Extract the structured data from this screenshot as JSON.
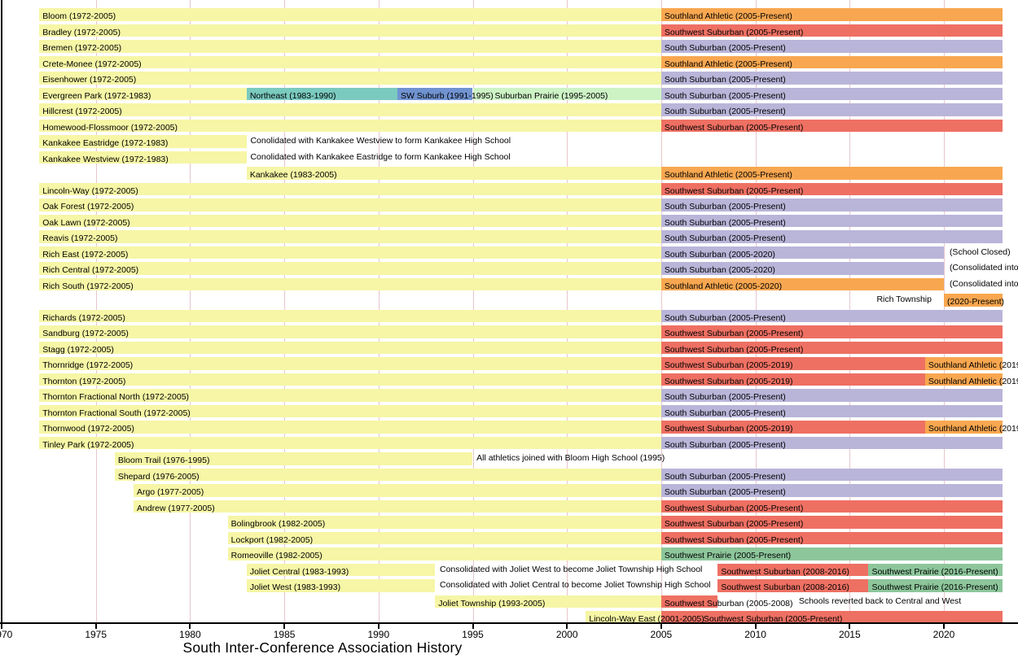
{
  "title": "South Inter-Conference Association History",
  "chart_data": {
    "type": "timeline",
    "title": "South Inter-Conference Association History",
    "xlabel": "",
    "ylabel": "",
    "grid": true,
    "legend_position": "none",
    "x_axis": {
      "min": 1970,
      "max": 2023.1,
      "ticks": [
        1970,
        1975,
        1980,
        1985,
        1990,
        1995,
        2000,
        2005,
        2010,
        2015,
        2020
      ],
      "tick_labels": [
        "1970",
        "1975",
        "1980",
        "1985",
        "1990",
        "1995",
        "2000",
        "2005",
        "2010",
        "2015",
        "2020"
      ]
    },
    "present_year_value": 2023.1,
    "palette": {
      "member": "#f6f6a6",
      "southland_athletic": "#f8a750",
      "southwest_suburban": "#ee7063",
      "south_suburban": "#b9b5d9",
      "northeast": "#7acabf",
      "sw_suburb": "#7092d0",
      "suburban_prairie": "#cdf3c5",
      "southwest_prairie": "#8dc69b",
      "gridline": "#e8c6ca",
      "axis": "#000000"
    },
    "rows": [
      {
        "school": "Bloom",
        "segments": [
          {
            "from": 1972,
            "to": 2005,
            "color": "member",
            "label": "Bloom (1972-2005)"
          },
          {
            "from": 2005,
            "to": "present",
            "color": "southland_athletic",
            "label": "Southland Athletic (2005-Present)"
          }
        ],
        "notes": []
      },
      {
        "school": "Bradley",
        "segments": [
          {
            "from": 1972,
            "to": 2005,
            "color": "member",
            "label": "Bradley (1972-2005)"
          },
          {
            "from": 2005,
            "to": "present",
            "color": "southwest_suburban",
            "label": "Southwest Suburban (2005-Present)"
          }
        ],
        "notes": []
      },
      {
        "school": "Bremen",
        "segments": [
          {
            "from": 1972,
            "to": 2005,
            "color": "member",
            "label": "Bremen (1972-2005)"
          },
          {
            "from": 2005,
            "to": "present",
            "color": "south_suburban",
            "label": "South Suburban (2005-Present)"
          }
        ],
        "notes": []
      },
      {
        "school": "Crete-Monee",
        "segments": [
          {
            "from": 1972,
            "to": 2005,
            "color": "member",
            "label": "Crete-Monee (1972-2005)"
          },
          {
            "from": 2005,
            "to": "present",
            "color": "southland_athletic",
            "label": "Southland Athletic (2005-Present)"
          }
        ],
        "notes": []
      },
      {
        "school": "Eisenhower",
        "segments": [
          {
            "from": 1972,
            "to": 2005,
            "color": "member",
            "label": "Eisenhower (1972-2005)"
          },
          {
            "from": 2005,
            "to": "present",
            "color": "south_suburban",
            "label": "South Suburban (2005-Present)"
          }
        ],
        "notes": []
      },
      {
        "school": "Evergreen Park",
        "segments": [
          {
            "from": 1972,
            "to": 1983,
            "color": "member",
            "label": "Evergreen Park (1972-1983)"
          },
          {
            "from": 1983,
            "to": 1991,
            "color": "northeast",
            "label": "Northeast (1983-1990)"
          },
          {
            "from": 1991,
            "to": 1995,
            "color": "sw_suburb",
            "label": "SW Suburb (1991-1995)"
          },
          {
            "from": 1995,
            "to": 2005,
            "color": "suburban_prairie",
            "label": "Suburban Prairie (1995-2005)",
            "labelOffset": 27
          },
          {
            "from": 2005,
            "to": "present",
            "color": "south_suburban",
            "label": "South Suburban (2005-Present)"
          }
        ],
        "notes": []
      },
      {
        "school": "Hillcrest",
        "segments": [
          {
            "from": 1972,
            "to": 2005,
            "color": "member",
            "label": "Hillcrest (1972-2005)"
          },
          {
            "from": 2005,
            "to": "present",
            "color": "south_suburban",
            "label": "South Suburban (2005-Present)"
          }
        ],
        "notes": []
      },
      {
        "school": "Homewood-Flossmoor",
        "segments": [
          {
            "from": 1972,
            "to": 2005,
            "color": "member",
            "label": "Homewood-Flossmoor (1972-2005)"
          },
          {
            "from": 2005,
            "to": "present",
            "color": "southwest_suburban",
            "label": "Southwest Suburban (2005-Present)"
          }
        ],
        "notes": []
      },
      {
        "school": "Kankakee Eastridge",
        "segments": [
          {
            "from": 1972,
            "to": 1983,
            "color": "member",
            "label": "Kankakee Eastridge (1972-1983)"
          }
        ],
        "notes": [
          {
            "x_year": 1983.2,
            "text": "Conolidated with Kankakee Westview to form Kankakee High School"
          }
        ]
      },
      {
        "school": "Kankakee Westview",
        "segments": [
          {
            "from": 1972,
            "to": 1983,
            "color": "member",
            "label": "Kankakee Westview (1972-1983)"
          }
        ],
        "notes": [
          {
            "x_year": 1983.2,
            "text": "Conolidated with Kankakee Eastridge to form Kankakee High School"
          }
        ]
      },
      {
        "school": "Kankakee",
        "segments": [
          {
            "from": 1983,
            "to": 2005,
            "color": "member",
            "label": "Kankakee (1983-2005)"
          },
          {
            "from": 2005,
            "to": "present",
            "color": "southland_athletic",
            "label": "Southland Athletic (2005-Present)"
          }
        ],
        "notes": []
      },
      {
        "school": "Lincoln-Way",
        "segments": [
          {
            "from": 1972,
            "to": 2005,
            "color": "member",
            "label": "Lincoln-Way (1972-2005)"
          },
          {
            "from": 2005,
            "to": "present",
            "color": "southwest_suburban",
            "label": "Southwest Suburban (2005-Present)"
          }
        ],
        "notes": []
      },
      {
        "school": "Oak Forest",
        "segments": [
          {
            "from": 1972,
            "to": 2005,
            "color": "member",
            "label": "Oak Forest (1972-2005)"
          },
          {
            "from": 2005,
            "to": "present",
            "color": "south_suburban",
            "label": "South Suburban (2005-Present)"
          }
        ],
        "notes": []
      },
      {
        "school": "Oak Lawn",
        "segments": [
          {
            "from": 1972,
            "to": 2005,
            "color": "member",
            "label": "Oak Lawn (1972-2005)"
          },
          {
            "from": 2005,
            "to": "present",
            "color": "south_suburban",
            "label": "South Suburban (2005-Present)"
          }
        ],
        "notes": []
      },
      {
        "school": "Reavis",
        "segments": [
          {
            "from": 1972,
            "to": 2005,
            "color": "member",
            "label": "Reavis (1972-2005)"
          },
          {
            "from": 2005,
            "to": "present",
            "color": "south_suburban",
            "label": "South Suburban (2005-Present)"
          }
        ],
        "notes": []
      },
      {
        "school": "Rich East",
        "segments": [
          {
            "from": 1972,
            "to": 2005,
            "color": "member",
            "label": "Rich East (1972-2005)"
          },
          {
            "from": 2005,
            "to": 2020,
            "color": "south_suburban",
            "label": "South Suburban (2005-2020)"
          }
        ],
        "notes": [
          {
            "x_year": 2020.3,
            "text": "(School Closed)"
          }
        ]
      },
      {
        "school": "Rich Central",
        "segments": [
          {
            "from": 1972,
            "to": 2005,
            "color": "member",
            "label": "Rich Central (1972-2005)"
          },
          {
            "from": 2005,
            "to": 2020,
            "color": "south_suburban",
            "label": "South Suburban (2005-2020)"
          }
        ],
        "notes": [
          {
            "x_year": 2020.3,
            "text": "(Consolidated into"
          }
        ]
      },
      {
        "school": "Rich South",
        "segments": [
          {
            "from": 1972,
            "to": 2005,
            "color": "member",
            "label": "Rich South (1972-2005)"
          },
          {
            "from": 2005,
            "to": 2020,
            "color": "southland_athletic",
            "label": "Southland Athletic (2005-2020)"
          }
        ],
        "notes": [
          {
            "x_year": 2020.3,
            "text": "(Consolidated into"
          }
        ]
      },
      {
        "school": "Rich Township",
        "segments": [
          {
            "from": 2020,
            "to": "present",
            "color": "southland_athletic",
            "label": "(2020-Present)"
          }
        ],
        "notes": [
          {
            "x_year": 2019.35,
            "text": "Rich Township",
            "align": "right"
          }
        ]
      },
      {
        "school": "Richards",
        "segments": [
          {
            "from": 1972,
            "to": 2005,
            "color": "member",
            "label": "Richards (1972-2005)"
          },
          {
            "from": 2005,
            "to": "present",
            "color": "south_suburban",
            "label": "South Suburban (2005-Present)"
          }
        ],
        "notes": []
      },
      {
        "school": "Sandburg",
        "segments": [
          {
            "from": 1972,
            "to": 2005,
            "color": "member",
            "label": "Sandburg (1972-2005)"
          },
          {
            "from": 2005,
            "to": "present",
            "color": "southwest_suburban",
            "label": "Southwest Suburban (2005-Present)"
          }
        ],
        "notes": []
      },
      {
        "school": "Stagg",
        "segments": [
          {
            "from": 1972,
            "to": 2005,
            "color": "member",
            "label": "Stagg (1972-2005)"
          },
          {
            "from": 2005,
            "to": "present",
            "color": "southwest_suburban",
            "label": "Southwest Suburban (2005-Present)"
          }
        ],
        "notes": []
      },
      {
        "school": "Thornridge",
        "segments": [
          {
            "from": 1972,
            "to": 2005,
            "color": "member",
            "label": "Thornridge (1972-2005)"
          },
          {
            "from": 2005,
            "to": 2019,
            "color": "southwest_suburban",
            "label": "Southwest Suburban (2005-2019)"
          },
          {
            "from": 2019,
            "to": "present",
            "color": "southland_athletic",
            "label": "Southland Athletic (2019"
          }
        ],
        "notes": []
      },
      {
        "school": "Thornton",
        "segments": [
          {
            "from": 1972,
            "to": 2005,
            "color": "member",
            "label": "Thornton (1972-2005)"
          },
          {
            "from": 2005,
            "to": 2019,
            "color": "southwest_suburban",
            "label": "Southwest Suburban (2005-2019)"
          },
          {
            "from": 2019,
            "to": "present",
            "color": "southland_athletic",
            "label": "Southland Athletic (2019"
          }
        ],
        "notes": []
      },
      {
        "school": "Thornton Fractional North",
        "segments": [
          {
            "from": 1972,
            "to": 2005,
            "color": "member",
            "label": "Thornton Fractional North (1972-2005)"
          },
          {
            "from": 2005,
            "to": "present",
            "color": "south_suburban",
            "label": "South Suburban (2005-Present)"
          }
        ],
        "notes": []
      },
      {
        "school": "Thornton Fractional South",
        "segments": [
          {
            "from": 1972,
            "to": 2005,
            "color": "member",
            "label": "Thornton Fractional South (1972-2005)"
          },
          {
            "from": 2005,
            "to": "present",
            "color": "south_suburban",
            "label": "South Suburban (2005-Present)"
          }
        ],
        "notes": []
      },
      {
        "school": "Thornwood",
        "segments": [
          {
            "from": 1972,
            "to": 2005,
            "color": "member",
            "label": "Thornwood (1972-2005)"
          },
          {
            "from": 2005,
            "to": 2019,
            "color": "southwest_suburban",
            "label": "Southwest Suburban (2005-2019)"
          },
          {
            "from": 2019,
            "to": "present",
            "color": "southland_athletic",
            "label": "Southland Athletic (2019"
          }
        ],
        "notes": []
      },
      {
        "school": "Tinley Park",
        "segments": [
          {
            "from": 1972,
            "to": 2005,
            "color": "member",
            "label": "Tinley Park (1972-2005)"
          },
          {
            "from": 2005,
            "to": "present",
            "color": "south_suburban",
            "label": "South Suburban (2005-Present)"
          }
        ],
        "notes": []
      },
      {
        "school": "Bloom Trail",
        "segments": [
          {
            "from": 1976,
            "to": 1995,
            "color": "member",
            "label": "Bloom Trail (1976-1995)"
          }
        ],
        "notes": [
          {
            "x_year": 1995.2,
            "text": "All athletics joined with Bloom High School (1995)"
          }
        ]
      },
      {
        "school": "Shepard",
        "segments": [
          {
            "from": 1976,
            "to": 2005,
            "color": "member",
            "label": "Shepard (1976-2005)"
          },
          {
            "from": 2005,
            "to": "present",
            "color": "south_suburban",
            "label": "South Suburban (2005-Present)"
          }
        ],
        "notes": []
      },
      {
        "school": "Argo",
        "segments": [
          {
            "from": 1977,
            "to": 2005,
            "color": "member",
            "label": "Argo (1977-2005)"
          },
          {
            "from": 2005,
            "to": "present",
            "color": "south_suburban",
            "label": "South Suburban (2005-Present)"
          }
        ],
        "notes": []
      },
      {
        "school": "Andrew",
        "segments": [
          {
            "from": 1977,
            "to": 2005,
            "color": "member",
            "label": "Andrew (1977-2005)"
          },
          {
            "from": 2005,
            "to": "present",
            "color": "southwest_suburban",
            "label": "Southwest Suburban (2005-Present)"
          }
        ],
        "notes": []
      },
      {
        "school": "Bolingbrook",
        "segments": [
          {
            "from": 1982,
            "to": 2005,
            "color": "member",
            "label": "Bolingbrook (1982-2005)"
          },
          {
            "from": 2005,
            "to": "present",
            "color": "southwest_suburban",
            "label": "Southwest Suburban (2005-Present)"
          }
        ],
        "notes": []
      },
      {
        "school": "Lockport",
        "segments": [
          {
            "from": 1982,
            "to": 2005,
            "color": "member",
            "label": "Lockport (1982-2005)"
          },
          {
            "from": 2005,
            "to": "present",
            "color": "southwest_suburban",
            "label": "Southwest Suburban (2005-Present)"
          }
        ],
        "notes": []
      },
      {
        "school": "Romeoville",
        "segments": [
          {
            "from": 1982,
            "to": 2005,
            "color": "member",
            "label": "Romeoville (1982-2005)"
          },
          {
            "from": 2005,
            "to": "present",
            "color": "southwest_prairie",
            "label": "Southwest Prairie (2005-Present)"
          }
        ],
        "notes": []
      },
      {
        "school": "Joliet Central",
        "segments": [
          {
            "from": 1983,
            "to": 1993,
            "color": "member",
            "label": "Joliet Central (1983-1993)"
          },
          {
            "from": 2008,
            "to": 2016,
            "color": "southwest_suburban",
            "label": "Southwest Suburban (2008-2016)"
          },
          {
            "from": 2016,
            "to": "present",
            "color": "southwest_prairie",
            "label": "Southwest Prairie (2016-Present)"
          }
        ],
        "notes": [
          {
            "x_year": 1993.25,
            "text": "Consolidated with Joliet West to become Joliet Township High School"
          }
        ]
      },
      {
        "school": "Joliet West",
        "segments": [
          {
            "from": 1983,
            "to": 1993,
            "color": "member",
            "label": "Joliet West (1983-1993)"
          },
          {
            "from": 2008,
            "to": 2016,
            "color": "southwest_suburban",
            "label": "Southwest Suburban (2008-2016)"
          },
          {
            "from": 2016,
            "to": "present",
            "color": "southwest_prairie",
            "label": "Southwest Prairie (2016-Present)"
          }
        ],
        "notes": [
          {
            "x_year": 1993.25,
            "text": "Consolidated with Joliet Central to become Joliet Township High School"
          }
        ]
      },
      {
        "school": "Joliet Township",
        "segments": [
          {
            "from": 1993,
            "to": 2005,
            "color": "member",
            "label": "Joliet Township (1993-2005)"
          },
          {
            "from": 2005,
            "to": 2008,
            "color": "southwest_suburban",
            "label": "Southwest Suburban (2005-2008)"
          }
        ],
        "notes": [
          {
            "x_year": 2012.3,
            "text": "Schools reverted back to Central and West"
          }
        ]
      },
      {
        "school": "Lincoln-Way East",
        "segments": [
          {
            "from": 2001,
            "to": 2005,
            "color": "member",
            "label": "Lincoln-Way East (2001-2005)"
          },
          {
            "from": 2005,
            "to": "present",
            "color": "southwest_suburban",
            "label": "Southwest Suburban (2005-Present)",
            "labelOffset": 52
          }
        ],
        "notes": []
      }
    ]
  }
}
